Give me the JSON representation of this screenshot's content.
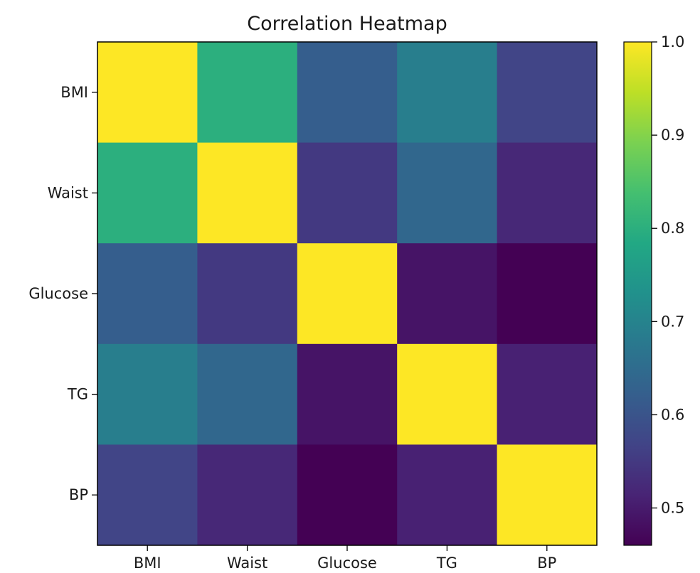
{
  "chart_data": {
    "type": "heatmap",
    "title": "Correlation Heatmap",
    "x_labels": [
      "BMI",
      "Waist",
      "Glucose",
      "TG",
      "BP"
    ],
    "y_labels": [
      "BMI",
      "Waist",
      "Glucose",
      "TG",
      "BP"
    ],
    "matrix": [
      [
        1.0,
        0.8,
        0.62,
        0.69,
        0.57
      ],
      [
        0.8,
        1.0,
        0.55,
        0.64,
        0.52
      ],
      [
        0.62,
        0.55,
        1.0,
        0.49,
        0.46
      ],
      [
        0.69,
        0.64,
        0.49,
        1.0,
        0.51
      ],
      [
        0.57,
        0.52,
        0.46,
        0.51,
        1.0
      ]
    ],
    "colormap": "viridis",
    "colorbar": {
      "range": [
        0.46,
        1.0
      ],
      "ticks": [
        0.5,
        0.6,
        0.7,
        0.8,
        0.9,
        1.0
      ],
      "tick_labels": [
        "0.5",
        "0.6",
        "0.7",
        "0.8",
        "0.9",
        "1.0"
      ]
    },
    "grid": false
  }
}
